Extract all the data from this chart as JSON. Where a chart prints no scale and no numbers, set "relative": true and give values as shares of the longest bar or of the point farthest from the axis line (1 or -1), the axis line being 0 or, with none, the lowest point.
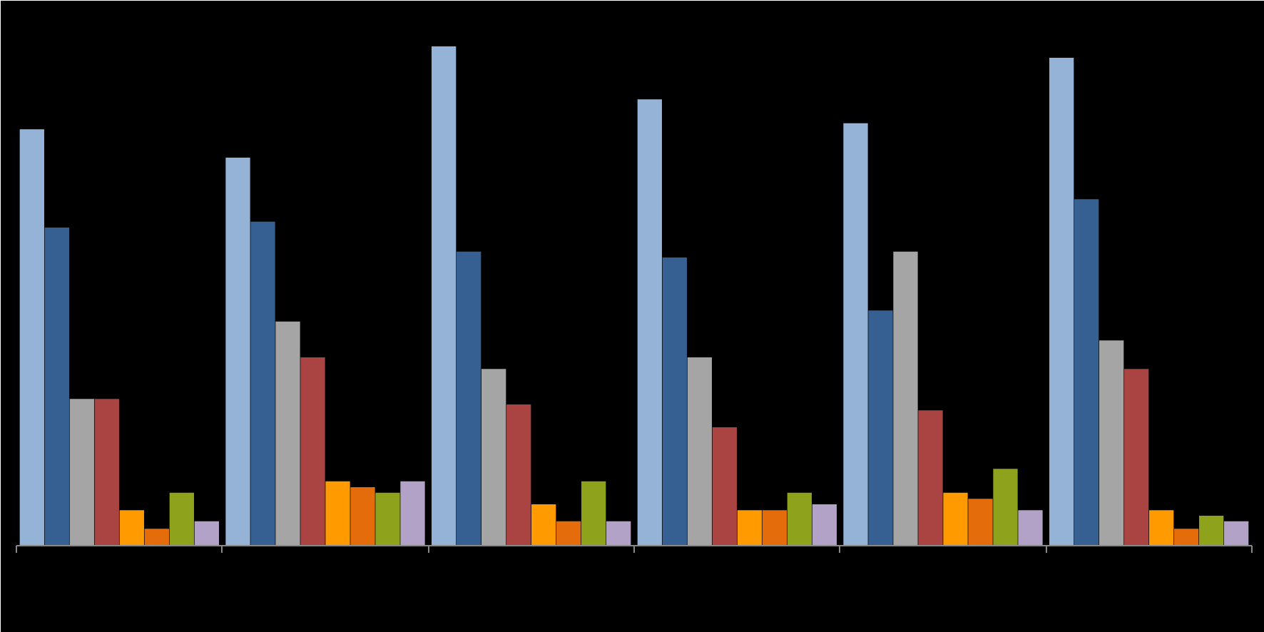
{
  "chart_data": {
    "type": "bar",
    "relative": true,
    "categories": [
      null,
      null,
      null,
      null,
      null,
      null
    ],
    "series": [
      {
        "color": "#95b3d7",
        "values": [
          0.834,
          0.777,
          1,
          0.894,
          0.846,
          0.977
        ]
      },
      {
        "color": "#376092",
        "values": [
          0.637,
          0.649,
          0.589,
          0.577,
          0.471,
          0.694
        ]
      },
      {
        "color": "#a5a5a5",
        "values": [
          0.294,
          0.449,
          0.354,
          0.377,
          0.589,
          0.411
        ]
      },
      {
        "color": "#a94442",
        "values": [
          0.294,
          0.377,
          0.283,
          0.237,
          0.271,
          0.354
        ]
      },
      {
        "color": "#ff9a00",
        "values": [
          0.071,
          0.129,
          0.083,
          0.071,
          0.106,
          0.071
        ]
      },
      {
        "color": "#e46c0a",
        "values": [
          0.034,
          0.117,
          0.049,
          0.071,
          0.094,
          0.034
        ]
      },
      {
        "color": "#8ea31b",
        "values": [
          0.106,
          0.106,
          0.129,
          0.106,
          0.154,
          0.06
        ]
      },
      {
        "color": "#b3a2c7",
        "values": [
          0.049,
          0.129,
          0.049,
          0.083,
          0.071,
          0.049
        ]
      }
    ],
    "tick_labels": false,
    "grid": false
  }
}
